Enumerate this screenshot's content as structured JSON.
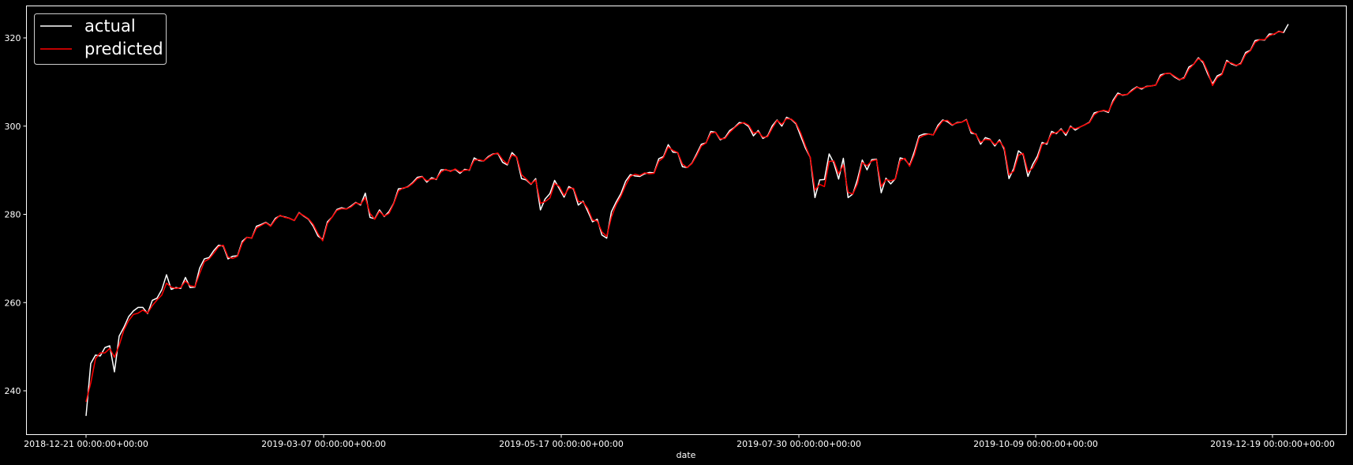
{
  "chart_data": {
    "type": "line",
    "title": "",
    "xlabel": "date",
    "ylabel": "",
    "x_tick_labels": [
      "2018-12-21 00:00:00+00:00",
      "2019-03-07 00:00:00+00:00",
      "2019-05-17 00:00:00+00:00",
      "2019-07-30 00:00:00+00:00",
      "2019-10-09 00:00:00+00:00",
      "2019-12-19 00:00:00+00:00"
    ],
    "y_ticks": [
      240,
      260,
      280,
      300,
      320
    ],
    "ylim": [
      230,
      326
    ],
    "grid": false,
    "legend_position": "upper-left",
    "background_color": "#000000",
    "series": [
      {
        "name": "actual",
        "color": "#ffffff",
        "values": [
          234.3,
          246.2,
          248.1,
          247.9,
          249.8,
          250.2,
          244.3,
          252.4,
          254.4,
          256.8,
          258.1,
          258.9,
          258.9,
          257.5,
          260.5,
          261.0,
          262.9,
          266.3,
          263.0,
          263.4,
          263.2,
          265.7,
          263.4,
          263.5,
          267.8,
          269.9,
          270.2,
          271.8,
          273.0,
          272.8,
          269.9,
          270.5,
          270.6,
          273.9,
          274.8,
          274.6,
          277.3,
          277.7,
          278.2,
          277.4,
          279.1,
          279.7,
          279.4,
          279.1,
          278.6,
          280.4,
          279.6,
          278.9,
          277.3,
          275.1,
          274.3,
          278.3,
          279.4,
          281.1,
          281.5,
          281.2,
          281.9,
          282.7,
          282.1,
          284.8,
          279.3,
          279.0,
          281.0,
          279.5,
          280.6,
          282.5,
          285.8,
          285.9,
          286.3,
          287.2,
          288.4,
          288.6,
          287.3,
          288.3,
          287.9,
          290.1,
          290.1,
          289.8,
          290.2,
          289.3,
          290.2,
          290.0,
          292.8,
          292.2,
          292.1,
          293.1,
          293.7,
          293.8,
          291.8,
          291.2,
          294.0,
          292.9,
          288.1,
          287.8,
          286.8,
          288.1,
          281.0,
          283.5,
          284.7,
          287.7,
          285.8,
          283.9,
          286.3,
          285.7,
          282.1,
          283.0,
          280.7,
          278.3,
          278.9,
          275.3,
          274.6,
          280.6,
          282.8,
          284.7,
          287.5,
          289.0,
          288.7,
          288.6,
          289.2,
          289.5,
          289.4,
          292.6,
          293.1,
          295.8,
          294.1,
          294.0,
          290.8,
          290.6,
          291.6,
          293.7,
          295.9,
          296.2,
          298.8,
          298.6,
          296.9,
          297.4,
          299.0,
          299.7,
          300.8,
          300.7,
          299.9,
          297.8,
          299.0,
          297.2,
          297.8,
          300.1,
          301.4,
          300.0,
          302.0,
          301.5,
          300.5,
          297.7,
          295.0,
          292.9,
          283.8,
          287.8,
          287.9,
          293.7,
          291.6,
          288.0,
          292.7,
          283.8,
          284.6,
          288.0,
          292.3,
          290.1,
          292.4,
          292.5,
          284.9,
          288.2,
          286.9,
          288.1,
          292.8,
          292.5,
          291.1,
          294.2,
          297.8,
          298.2,
          298.2,
          298.0,
          300.2,
          301.4,
          301.0,
          300.2,
          300.8,
          300.9,
          301.5,
          298.4,
          298.2,
          295.9,
          297.4,
          297.0,
          295.5,
          296.9,
          294.7,
          288.1,
          290.4,
          294.4,
          293.5,
          288.6,
          291.3,
          293.2,
          296.3,
          295.9,
          298.8,
          298.3,
          299.4,
          297.9,
          300.0,
          299.1,
          299.8,
          300.3,
          300.9,
          303.0,
          303.3,
          303.5,
          303.1,
          305.9,
          307.5,
          307.0,
          307.2,
          308.2,
          308.9,
          308.4,
          309.0,
          309.1,
          309.3,
          311.6,
          311.9,
          312.0,
          311.1,
          310.5,
          311.0,
          313.4,
          314.0,
          315.5,
          314.4,
          311.8,
          309.6,
          311.4,
          311.9,
          314.9,
          314.1,
          313.7,
          314.3,
          316.7,
          317.2,
          319.4,
          319.6,
          319.5,
          320.9,
          320.8,
          321.5,
          321.2,
          323.1
        ]
      },
      {
        "name": "predicted",
        "color": "#ff0000",
        "values": [
          237.5,
          241.8,
          247.3,
          248.6,
          248.6,
          249.6,
          247.6,
          250.3,
          253.8,
          255.9,
          257.3,
          257.6,
          258.3,
          257.6,
          259.3,
          260.6,
          261.7,
          264.4,
          263.5,
          263.2,
          263.4,
          264.9,
          263.8,
          263.6,
          266.6,
          269.3,
          269.9,
          271.2,
          272.7,
          273.0,
          270.3,
          270.0,
          270.5,
          273.5,
          274.8,
          274.6,
          276.9,
          277.5,
          278.1,
          277.3,
          278.8,
          279.8,
          279.3,
          279.1,
          278.6,
          280.3,
          279.7,
          279.0,
          277.7,
          275.6,
          274.0,
          277.9,
          279.4,
          280.9,
          281.3,
          281.2,
          281.7,
          282.6,
          282.3,
          283.8,
          280.2,
          278.9,
          280.7,
          279.6,
          280.2,
          282.4,
          285.3,
          286.0,
          286.2,
          287.0,
          288.1,
          288.5,
          287.6,
          288.0,
          288.0,
          289.6,
          290.2,
          289.7,
          290.3,
          289.6,
          290.0,
          290.1,
          292.3,
          292.4,
          292.1,
          292.9,
          293.6,
          293.9,
          292.4,
          291.4,
          293.5,
          293.0,
          289.0,
          288.0,
          286.9,
          287.8,
          282.5,
          282.9,
          283.7,
          287.0,
          286.3,
          284.3,
          285.9,
          285.9,
          282.9,
          282.8,
          281.3,
          278.7,
          278.5,
          276.0,
          275.0,
          279.4,
          282.2,
          284.1,
          286.6,
          288.6,
          289.1,
          288.8,
          289.4,
          289.2,
          289.3,
          292.0,
          292.9,
          295.3,
          294.5,
          294.0,
          291.4,
          290.6,
          291.5,
          293.3,
          295.5,
          296.2,
          298.4,
          298.6,
          297.1,
          297.2,
          298.6,
          299.6,
          300.5,
          300.8,
          300.2,
          298.4,
          298.7,
          297.5,
          297.6,
          299.6,
          301.3,
          300.4,
          301.7,
          301.6,
          300.7,
          298.4,
          295.5,
          292.9,
          285.5,
          286.8,
          286.3,
          292.0,
          292.1,
          289.2,
          291.2,
          285.0,
          284.6,
          287.0,
          291.8,
          291.0,
          292.1,
          292.4,
          286.3,
          287.9,
          287.6,
          288.0,
          292.2,
          292.7,
          290.9,
          293.5,
          297.3,
          297.9,
          298.2,
          298.0,
          299.8,
          301.2,
          301.3,
          300.3,
          300.7,
          300.9,
          301.4,
          298.8,
          298.1,
          296.3,
          297.0,
          296.9,
          295.8,
          296.6,
          295.1,
          289.0,
          289.8,
          293.4,
          293.8,
          289.6,
          290.5,
          292.5,
          295.9,
          296.2,
          298.3,
          298.5,
          299.2,
          298.3,
          299.8,
          299.4,
          299.8,
          300.3,
          300.8,
          302.6,
          303.3,
          303.6,
          303.3,
          305.5,
          307.2,
          307.1,
          307.2,
          308.0,
          308.8,
          308.6,
          308.9,
          309.1,
          309.3,
          311.2,
          311.9,
          312.0,
          311.3,
          310.6,
          310.8,
          312.9,
          314.0,
          315.3,
          314.7,
          312.3,
          309.2,
          311.0,
          311.7,
          314.6,
          314.3,
          313.8,
          314.1,
          316.3,
          317.1,
          319.0,
          319.6,
          319.6,
          320.5,
          320.9,
          321.4,
          321.3
        ]
      }
    ]
  }
}
